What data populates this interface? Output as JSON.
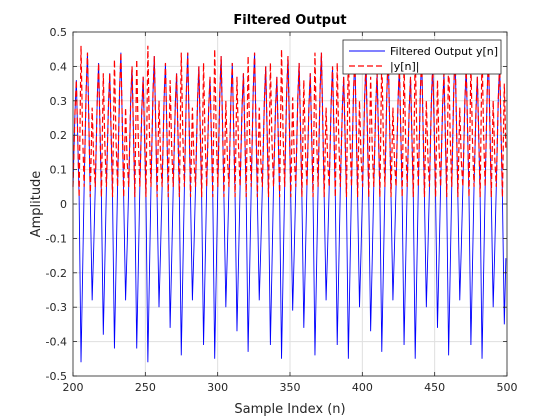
{
  "chart_data": {
    "type": "line",
    "title": "Filtered Output",
    "xlabel": "Sample Index (n)",
    "ylabel": "Amplitude",
    "xlim": [
      200,
      500
    ],
    "ylim": [
      -0.5,
      0.5
    ],
    "xticks": [
      200,
      250,
      300,
      350,
      400,
      450,
      500
    ],
    "yticks": [
      -0.5,
      -0.4,
      -0.3,
      -0.2,
      -0.1,
      0,
      0.1,
      0.2,
      0.3,
      0.4,
      0.5
    ],
    "grid": true,
    "legend_position": "top-right",
    "series": [
      {
        "name": "Filtered Output y[n]",
        "color": "#0000ff",
        "style": "solid",
        "description_values": {
          "peaks": [
            0.36,
            0.44,
            0.41,
            0.38,
            0.44,
            0.4,
            0.37,
            0.43,
            0.41,
            0.38,
            0.44,
            0.4,
            0.37,
            0.43,
            0.41,
            0.38,
            0.44,
            0.4,
            0.37,
            0.43,
            0.41,
            0.38,
            0.44,
            0.4,
            0.37,
            0.43,
            0.41,
            0.38,
            0.44,
            0.4,
            0.37,
            0.43,
            0.41,
            0.38,
            0.44,
            0.4,
            0.37,
            0.43,
            0.41
          ],
          "troughs": [
            -0.46,
            -0.28,
            -0.38,
            -0.42,
            -0.28,
            -0.42,
            -0.46,
            -0.3,
            -0.36,
            -0.44,
            -0.28,
            -0.41,
            -0.45,
            -0.3,
            -0.37,
            -0.43,
            -0.28,
            -0.41,
            -0.45,
            -0.31,
            -0.36,
            -0.44,
            -0.28,
            -0.41,
            -0.45,
            -0.3,
            -0.37,
            -0.43,
            -0.28,
            -0.41,
            -0.45,
            -0.3,
            -0.36,
            -0.44,
            -0.28,
            -0.41,
            -0.45,
            -0.3,
            -0.35
          ]
        }
      },
      {
        "name": "|y[n]|",
        "color": "#ff0000",
        "style": "dashed"
      }
    ],
    "signal": {
      "period_samples": 7.7,
      "phase_start": 200
    }
  }
}
